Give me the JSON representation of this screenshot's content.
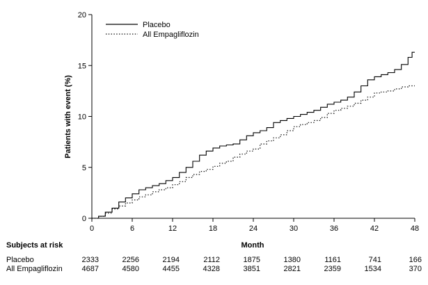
{
  "chart_data": {
    "type": "line",
    "title": "",
    "xlabel": "Month",
    "ylabel": "Patients with event (%)",
    "xlim": [
      0,
      48
    ],
    "ylim": [
      0,
      20
    ],
    "xticks": [
      0,
      6,
      12,
      18,
      24,
      30,
      36,
      42,
      48
    ],
    "yticks": [
      0,
      5,
      10,
      15,
      20
    ],
    "grid": false,
    "legend_position": "top-left",
    "series": [
      {
        "name": "Placebo",
        "line_style": "solid",
        "color": "#000000",
        "points": [
          [
            0,
            0
          ],
          [
            1,
            0.2
          ],
          [
            2,
            0.6
          ],
          [
            3,
            1.0
          ],
          [
            4,
            1.6
          ],
          [
            5,
            2.0
          ],
          [
            6,
            2.4
          ],
          [
            7,
            2.8
          ],
          [
            8,
            3.0
          ],
          [
            9,
            3.2
          ],
          [
            10,
            3.4
          ],
          [
            11,
            3.7
          ],
          [
            12,
            4.0
          ],
          [
            13,
            4.5
          ],
          [
            14,
            5.0
          ],
          [
            15,
            5.6
          ],
          [
            16,
            6.2
          ],
          [
            17,
            6.6
          ],
          [
            18,
            6.9
          ],
          [
            19,
            7.1
          ],
          [
            20,
            7.2
          ],
          [
            21,
            7.3
          ],
          [
            22,
            7.7
          ],
          [
            23,
            8.1
          ],
          [
            24,
            8.4
          ],
          [
            25,
            8.6
          ],
          [
            26,
            8.9
          ],
          [
            27,
            9.4
          ],
          [
            28,
            9.6
          ],
          [
            29,
            9.8
          ],
          [
            30,
            10.0
          ],
          [
            31,
            10.2
          ],
          [
            32,
            10.4
          ],
          [
            33,
            10.6
          ],
          [
            34,
            10.9
          ],
          [
            35,
            11.2
          ],
          [
            36,
            11.4
          ],
          [
            37,
            11.6
          ],
          [
            38,
            11.9
          ],
          [
            39,
            12.4
          ],
          [
            40,
            13.0
          ],
          [
            41,
            13.6
          ],
          [
            42,
            13.9
          ],
          [
            43,
            14.1
          ],
          [
            44,
            14.3
          ],
          [
            45,
            14.6
          ],
          [
            46,
            15.1
          ],
          [
            47,
            15.8
          ],
          [
            47.6,
            16.3
          ],
          [
            48,
            16.3
          ]
        ]
      },
      {
        "name": "All Empagliflozin",
        "line_style": "dotted",
        "color": "#000000",
        "points": [
          [
            0,
            0
          ],
          [
            1,
            0.2
          ],
          [
            2,
            0.5
          ],
          [
            3,
            0.9
          ],
          [
            4,
            1.2
          ],
          [
            5,
            1.5
          ],
          [
            6,
            1.8
          ],
          [
            7,
            2.1
          ],
          [
            8,
            2.3
          ],
          [
            9,
            2.6
          ],
          [
            10,
            2.8
          ],
          [
            11,
            3.0
          ],
          [
            12,
            3.3
          ],
          [
            13,
            3.6
          ],
          [
            14,
            4.0
          ],
          [
            15,
            4.3
          ],
          [
            16,
            4.6
          ],
          [
            17,
            4.8
          ],
          [
            18,
            5.1
          ],
          [
            19,
            5.4
          ],
          [
            20,
            5.6
          ],
          [
            21,
            6.0
          ],
          [
            22,
            6.3
          ],
          [
            23,
            6.6
          ],
          [
            24,
            6.8
          ],
          [
            25,
            7.3
          ],
          [
            26,
            7.6
          ],
          [
            27,
            7.9
          ],
          [
            28,
            8.2
          ],
          [
            29,
            8.6
          ],
          [
            30,
            9.0
          ],
          [
            31,
            9.2
          ],
          [
            32,
            9.4
          ],
          [
            33,
            9.6
          ],
          [
            34,
            9.9
          ],
          [
            35,
            10.3
          ],
          [
            36,
            10.6
          ],
          [
            37,
            10.8
          ],
          [
            38,
            11.0
          ],
          [
            39,
            11.3
          ],
          [
            40,
            11.6
          ],
          [
            41,
            11.9
          ],
          [
            42,
            12.3
          ],
          [
            43,
            12.4
          ],
          [
            44,
            12.5
          ],
          [
            45,
            12.7
          ],
          [
            46,
            12.9
          ],
          [
            47,
            13.0
          ],
          [
            48,
            13.0
          ]
        ]
      }
    ]
  },
  "risk_table": {
    "header": "Subjects at risk",
    "months": [
      0,
      6,
      12,
      18,
      24,
      30,
      36,
      42,
      48
    ],
    "rows": [
      {
        "label": "Placebo",
        "values": [
          "2333",
          "2256",
          "2194",
          "2112",
          "1875",
          "1380",
          "1161",
          "741",
          "166"
        ]
      },
      {
        "label": "All Empagliflozin",
        "values": [
          "4687",
          "4580",
          "4455",
          "4328",
          "3851",
          "2821",
          "2359",
          "1534",
          "370"
        ]
      }
    ]
  }
}
